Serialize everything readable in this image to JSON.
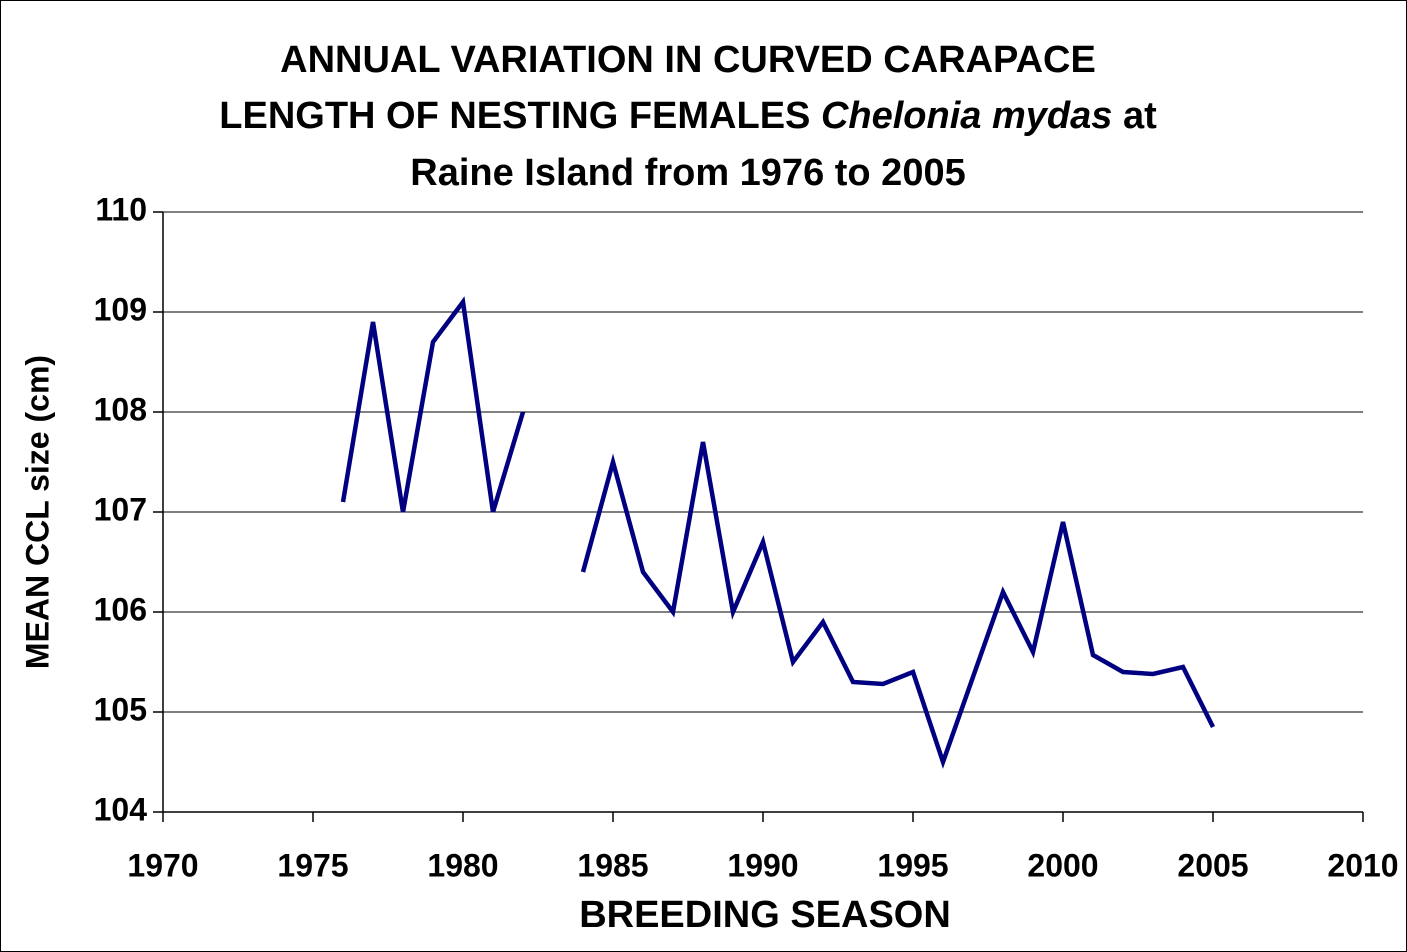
{
  "chart_data": {
    "type": "line",
    "title": {
      "line1": "ANNUAL VARIATION IN CURVED CARAPACE",
      "line2": "LENGTH OF NESTING FEMALES",
      "species": "Chelonia mydas",
      "line2_end": "at",
      "line3": "Raine Island from 1976 to 2005"
    },
    "xlabel": "BREEDING SEASON",
    "ylabel": "MEAN CCL size (cm)",
    "x": [
      1976,
      1977,
      1978,
      1979,
      1980,
      1981,
      1982,
      1983,
      1984,
      1985,
      1986,
      1987,
      1988,
      1989,
      1990,
      1991,
      1992,
      1993,
      1994,
      1995,
      1996,
      1997,
      1998,
      1999,
      2000,
      2001,
      2002,
      2003,
      2004,
      2005
    ],
    "series": [
      {
        "name": "Mean CCL",
        "color": "#000080",
        "values": [
          107.1,
          108.9,
          107.0,
          108.7,
          109.1,
          107.0,
          108.0,
          null,
          106.4,
          107.5,
          106.4,
          106.0,
          107.7,
          106.0,
          106.7,
          105.5,
          105.9,
          105.3,
          105.28,
          105.4,
          104.5,
          105.35,
          106.2,
          105.6,
          106.9,
          105.57,
          105.4,
          105.38,
          105.45,
          104.85
        ]
      }
    ],
    "xlim": [
      1970,
      2010
    ],
    "xticks": [
      1970,
      1975,
      1980,
      1985,
      1990,
      1995,
      2000,
      2005,
      2010
    ],
    "ylim": [
      104,
      110
    ],
    "yticks": [
      104,
      105,
      106,
      107,
      108,
      109,
      110
    ],
    "grid": true
  }
}
